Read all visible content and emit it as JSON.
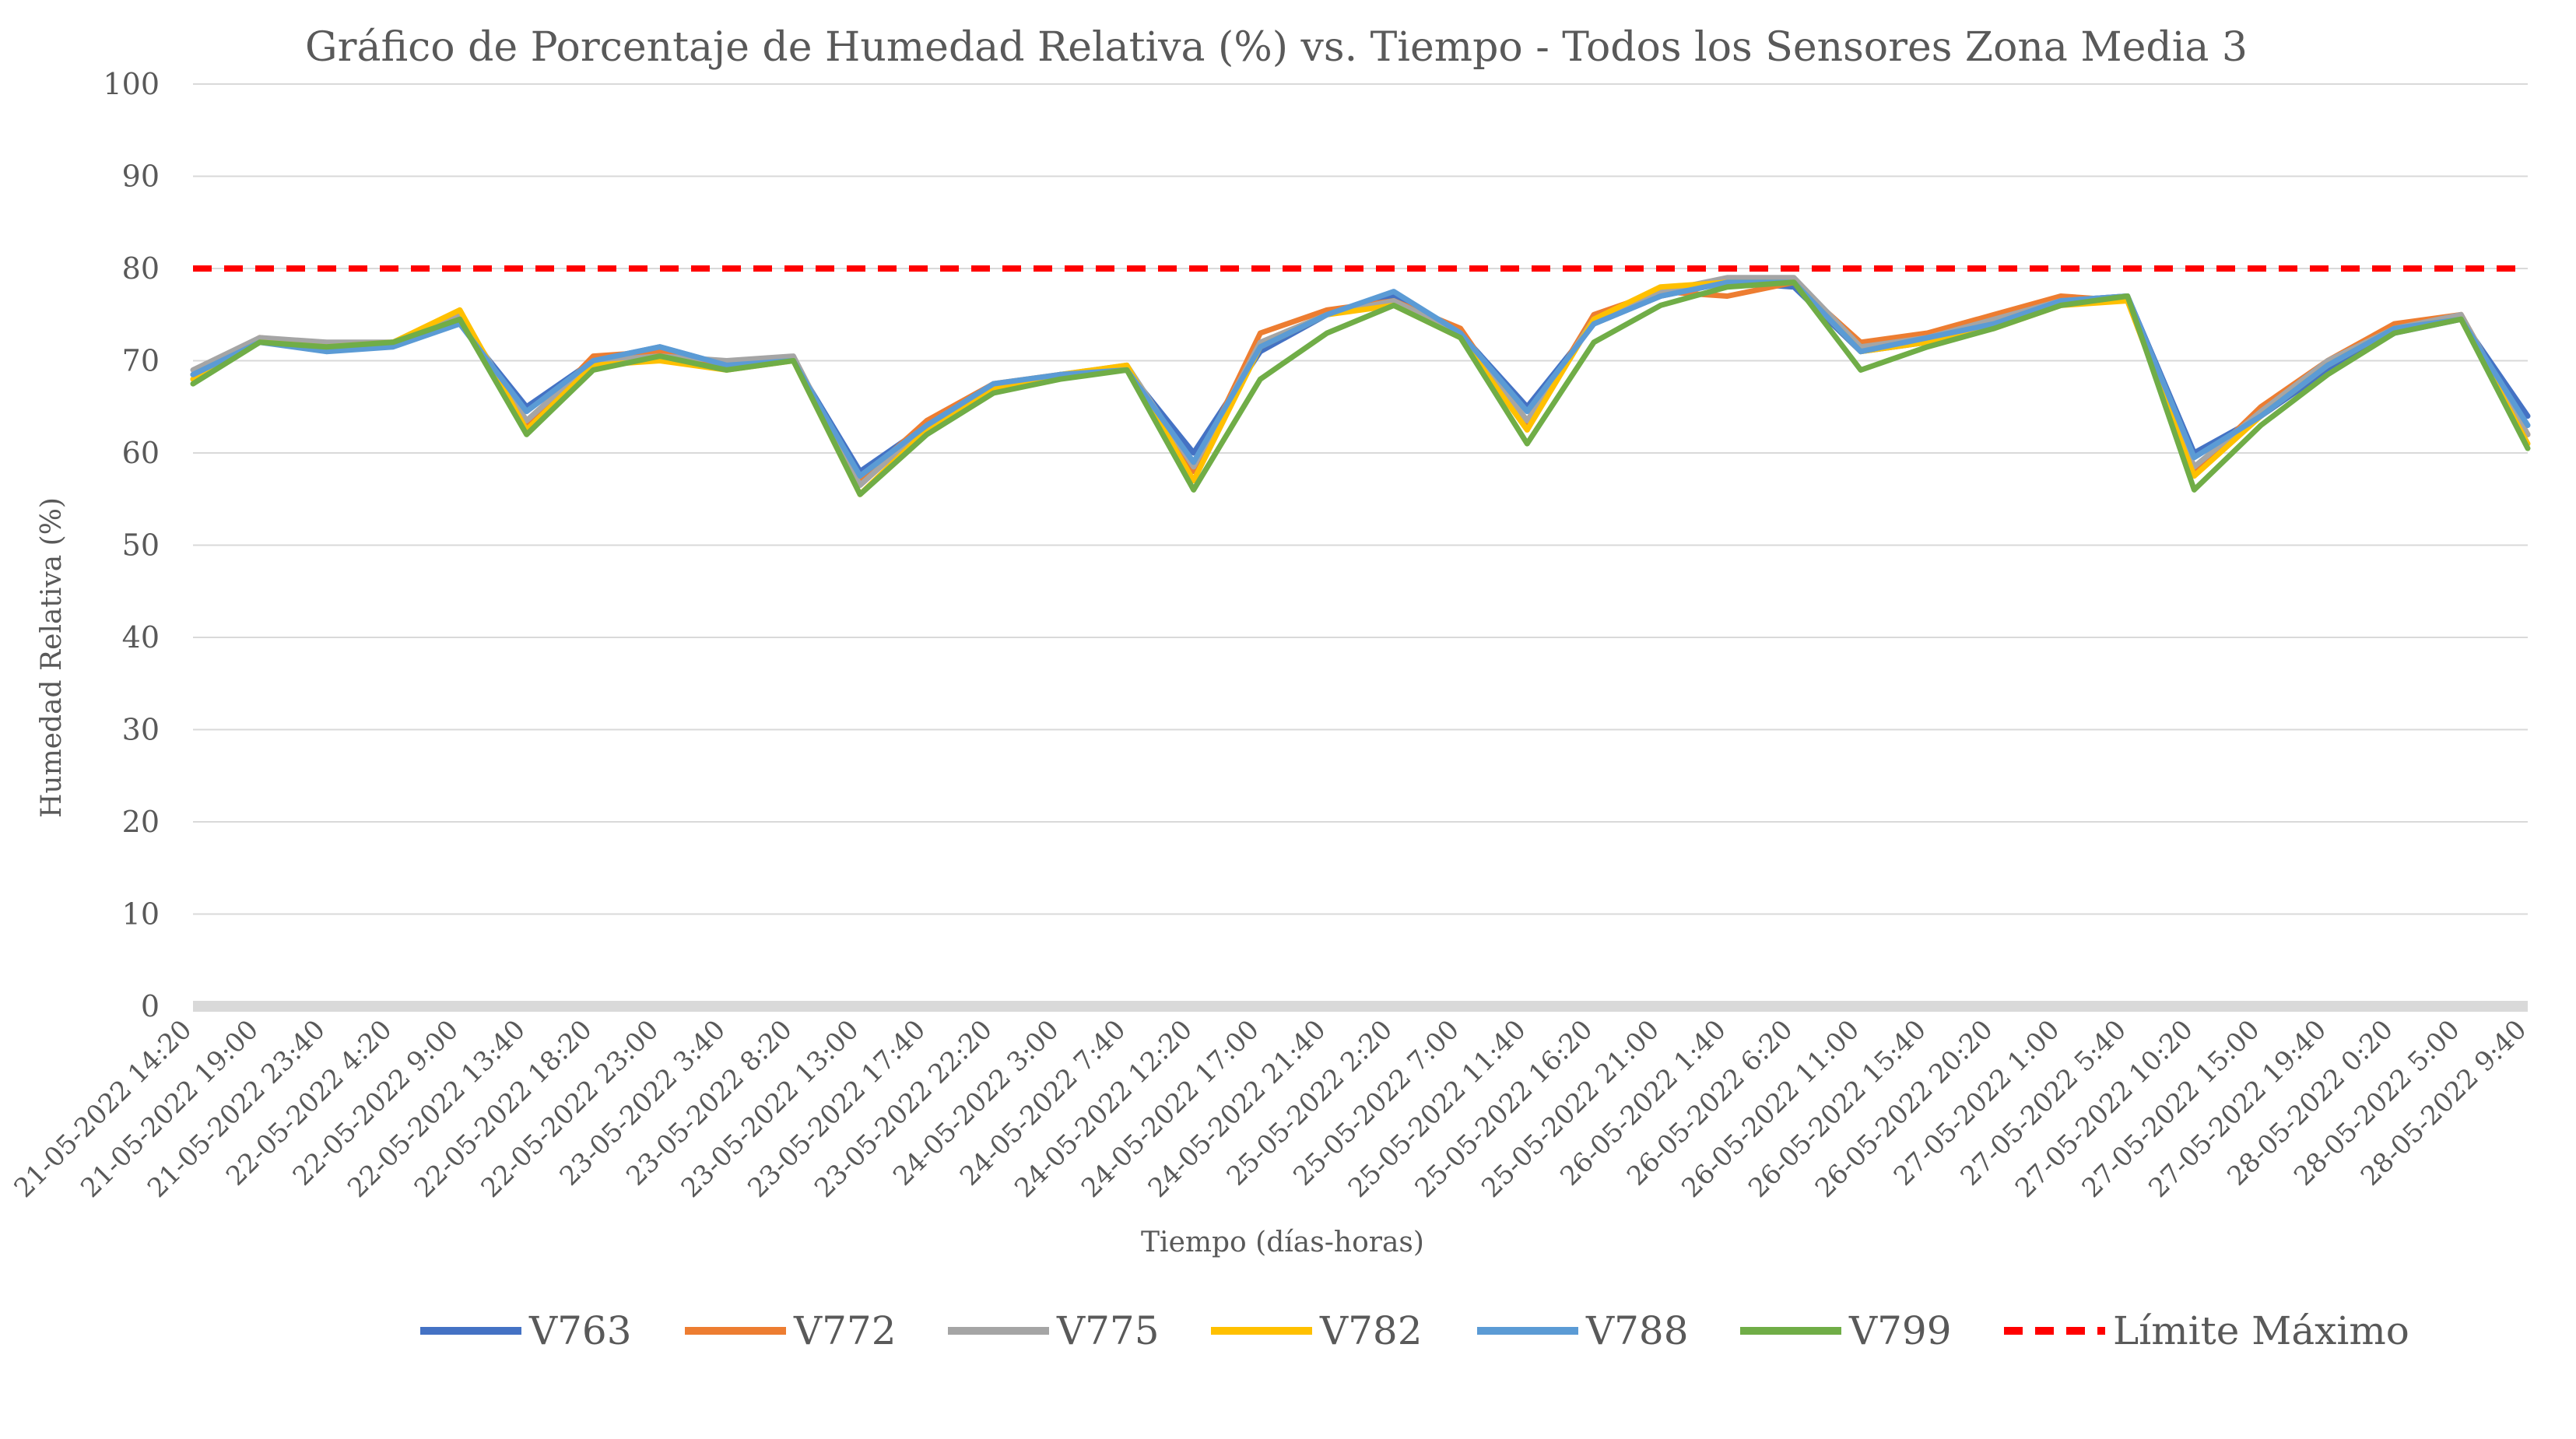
{
  "chart_data": {
    "type": "line",
    "title": "Gráfico de Porcentaje de Humedad Relativa (%) vs. Tiempo - Todos los Sensores Zona Media 3",
    "xlabel": "Tiempo (días-horas)",
    "ylabel": "Humedad Relativa (%)",
    "ylim": [
      0,
      100
    ],
    "y_ticks": [
      0,
      10,
      20,
      30,
      40,
      50,
      60,
      70,
      80,
      90,
      100
    ],
    "grid": true,
    "legend_position": "bottom",
    "categories": [
      "21-05-2022 14:20",
      "21-05-2022 19:00",
      "21-05-2022 23:40",
      "22-05-2022 4:20",
      "22-05-2022 9:00",
      "22-05-2022 13:40",
      "22-05-2022 18:20",
      "22-05-2022 23:00",
      "23-05-2022 3:40",
      "23-05-2022 8:20",
      "23-05-2022 13:00",
      "23-05-2022 17:40",
      "23-05-2022 22:20",
      "24-05-2022 3:00",
      "24-05-2022 7:40",
      "24-05-2022 12:20",
      "24-05-2022 17:00",
      "24-05-2022 21:40",
      "25-05-2022 2:20",
      "25-05-2022 7:00",
      "25-05-2022 11:40",
      "25-05-2022 16:20",
      "25-05-2022 21:00",
      "26-05-2022 1:40",
      "26-05-2022 6:20",
      "26-05-2022 11:00",
      "26-05-2022 15:40",
      "26-05-2022 20:20",
      "27-05-2022 1:00",
      "27-05-2022 5:40",
      "27-05-2022 10:20",
      "27-05-2022 15:00",
      "27-05-2022 19:40",
      "28-05-2022 0:20",
      "28-05-2022 5:00",
      "28-05-2022 9:40"
    ],
    "series": [
      {
        "name": "V763",
        "color": "#4472C4",
        "values": [
          68,
          72,
          71.5,
          72,
          74,
          65,
          70,
          71.5,
          69.5,
          70,
          58,
          63,
          67,
          68.5,
          69,
          60,
          71,
          75,
          77,
          73,
          65,
          74,
          77,
          78.5,
          78,
          71,
          72,
          74,
          76.5,
          77,
          60,
          64,
          69,
          73,
          74.5,
          64
        ]
      },
      {
        "name": "V772",
        "color": "#ED7D31",
        "values": [
          68.5,
          72.5,
          71.5,
          72,
          74.5,
          63,
          70.5,
          71,
          69.5,
          70,
          57,
          63.5,
          67.5,
          68.5,
          69,
          58,
          73,
          75.5,
          76.5,
          73.5,
          63,
          75,
          77.5,
          77,
          78.5,
          72,
          73,
          75,
          77,
          76.5,
          58,
          65,
          70,
          74,
          75,
          62
        ]
      },
      {
        "name": "V775",
        "color": "#A5A5A5",
        "values": [
          69,
          72.5,
          72,
          72,
          75,
          63.5,
          70,
          70.5,
          70,
          70.5,
          56.5,
          63,
          67,
          68.5,
          69.5,
          58.5,
          72,
          75,
          76.5,
          73,
          63.5,
          74.5,
          77.5,
          79,
          79,
          71.5,
          72.5,
          74.5,
          76.5,
          77,
          58.5,
          64.5,
          70,
          73.5,
          75,
          62
        ]
      },
      {
        "name": "V782",
        "color": "#FFC000",
        "values": [
          68,
          72,
          71.5,
          72,
          75.5,
          62.5,
          69.5,
          70,
          69,
          70,
          55.5,
          62.5,
          67,
          68.5,
          69.5,
          57,
          71.5,
          75,
          76,
          72.5,
          62.5,
          74.5,
          78,
          78.5,
          78.5,
          71,
          72,
          73.5,
          76,
          76.5,
          57.5,
          64,
          69.5,
          73.5,
          74.5,
          61
        ]
      },
      {
        "name": "V788",
        "color": "#5B9BD5",
        "values": [
          68.5,
          72,
          71,
          71.5,
          74,
          64.5,
          70,
          71.5,
          69.5,
          70,
          57.5,
          63,
          67.5,
          68.5,
          69,
          59,
          71.5,
          75,
          77.5,
          73,
          64.5,
          74,
          77,
          78.5,
          78.5,
          71,
          72.5,
          74,
          76.5,
          77,
          59.5,
          64,
          69.5,
          73.5,
          74.5,
          63
        ]
      },
      {
        "name": "V799",
        "color": "#70AD47",
        "values": [
          67.5,
          72,
          71.5,
          72,
          74.5,
          62,
          69,
          70.5,
          69,
          70,
          55.5,
          62,
          66.5,
          68,
          69,
          56,
          68,
          73,
          76,
          72.5,
          61,
          72,
          76,
          78,
          78.5,
          69,
          71.5,
          73.5,
          76,
          77,
          56,
          63,
          68.5,
          73,
          74.5,
          60.5
        ]
      },
      {
        "name": "Límite Máximo",
        "color": "#FF0000",
        "dashed": true,
        "values": [
          80,
          80,
          80,
          80,
          80,
          80,
          80,
          80,
          80,
          80,
          80,
          80,
          80,
          80,
          80,
          80,
          80,
          80,
          80,
          80,
          80,
          80,
          80,
          80,
          80,
          80,
          80,
          80,
          80,
          80,
          80,
          80,
          80,
          80,
          80,
          80
        ]
      }
    ]
  }
}
